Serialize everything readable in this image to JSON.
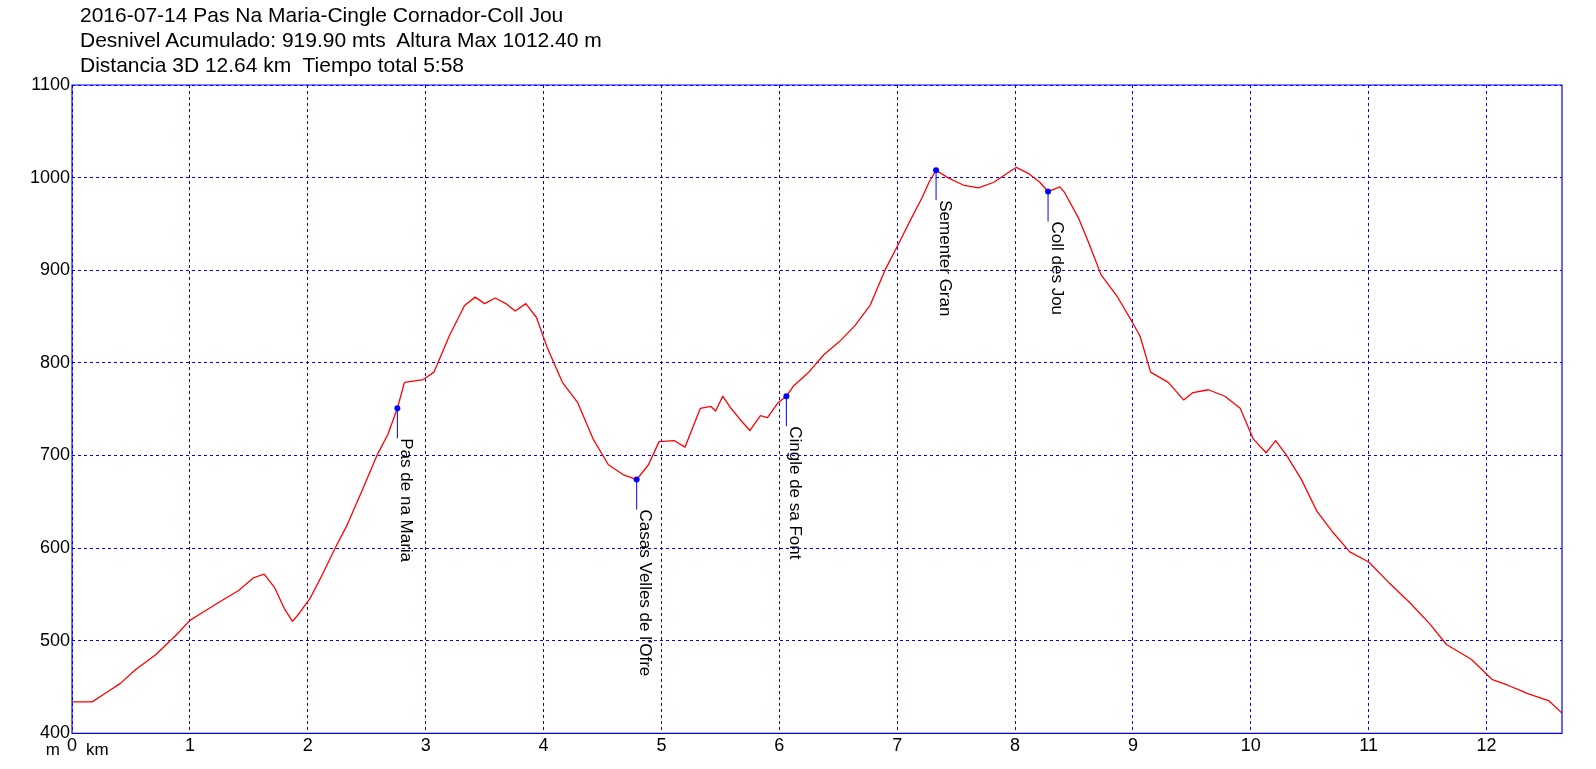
{
  "chart_data": {
    "type": "line",
    "title": "2016-07-14 Pas Na Maria-Cingle Cornador-Coll Jou",
    "subtitle": "Desnivel Acumulado: 919.90 mts  Altura Max 1012.40 m\nDistancia 3D 12.64 km  Tiempo total 5:58",
    "ylabel": "m",
    "xlabel": "km",
    "xlim": [
      0,
      12.64
    ],
    "xticks": [
      {
        "value": 0,
        "label": "0"
      },
      1,
      2,
      3,
      4,
      5,
      6,
      7,
      8,
      9,
      10,
      11,
      12
    ],
    "ylim": [
      400,
      1100
    ],
    "yticks": [
      400,
      500,
      600,
      700,
      800,
      900,
      1000,
      1100
    ],
    "grid": true,
    "legend": false,
    "marker": "none",
    "line_style": "solid",
    "series": [
      {
        "color": "#ff0000",
        "x": [
          0,
          0.17,
          0.28,
          0.41,
          0.54,
          0.71,
          0.89,
          1.0,
          1.1,
          1.24,
          1.41,
          1.54,
          1.63,
          1.72,
          1.8,
          1.87,
          1.93,
          2.02,
          2.11,
          2.24,
          2.33,
          2.46,
          2.59,
          2.68,
          2.76,
          2.82,
          2.98,
          3.07,
          3.2,
          3.33,
          3.42,
          3.5,
          3.59,
          3.68,
          3.76,
          3.85,
          3.94,
          4.03,
          4.16,
          4.29,
          4.42,
          4.55,
          4.68,
          4.79,
          4.89,
          4.98,
          5.11,
          5.2,
          5.33,
          5.42,
          5.46,
          5.52,
          5.59,
          5.66,
          5.75,
          5.84,
          5.9,
          5.99,
          6.06,
          6.12,
          6.25,
          6.38,
          6.51,
          6.64,
          6.77,
          6.9,
          7.01,
          7.12,
          7.21,
          7.27,
          7.33,
          7.43,
          7.56,
          7.69,
          7.82,
          7.95,
          8.01,
          8.12,
          8.21,
          8.28,
          8.38,
          8.42,
          8.54,
          8.63,
          8.73,
          8.86,
          8.99,
          9.06,
          9.15,
          9.3,
          9.43,
          9.51,
          9.64,
          9.78,
          9.91,
          10.02,
          10.13,
          10.21,
          10.3,
          10.43,
          10.56,
          10.69,
          10.84,
          11.0,
          11.17,
          11.35,
          11.52,
          11.66,
          11.87,
          12.05,
          12.18,
          12.35,
          12.53,
          12.64
        ],
        "values": [
          434,
          434,
          443,
          454,
          469,
          485,
          507,
          522,
          530,
          541,
          554,
          568,
          572,
          557,
          535,
          521,
          530,
          546,
          568,
          602,
          624,
          662,
          701,
          723,
          751,
          779,
          782,
          790,
          829,
          862,
          871,
          864,
          870,
          864,
          856,
          864,
          849,
          817,
          779,
          757,
          718,
          690,
          679,
          674,
          690,
          715,
          716,
          709,
          751,
          753,
          748,
          764,
          751,
          740,
          727,
          743,
          741,
          757,
          764,
          775,
          790,
          809,
          823,
          840,
          862,
          901,
          928,
          956,
          978,
          995,
          1008,
          1000,
          992,
          989,
          995,
          1006,
          1011,
          1004,
          995,
          985,
          990,
          984,
          956,
          928,
          895,
          873,
          845,
          829,
          790,
          779,
          760,
          768,
          771,
          764,
          751,
          718,
          703,
          716,
          701,
          674,
          640,
          618,
          596,
          585,
          563,
          541,
          518,
          496,
          480,
          458,
          452,
          443,
          435,
          422
        ]
      }
    ],
    "annotations": [
      {
        "text": "Pas de na Maria",
        "x": 2.76,
        "y": 751
      },
      {
        "text": "Casas Velles de l'Ofre",
        "x": 4.79,
        "y": 674
      },
      {
        "text": "Cingle de sa Font",
        "x": 6.06,
        "y": 764
      },
      {
        "text": "Sementer Gran",
        "x": 7.33,
        "y": 1008
      },
      {
        "text": "Coll des Jou",
        "x": 8.28,
        "y": 985
      }
    ]
  }
}
